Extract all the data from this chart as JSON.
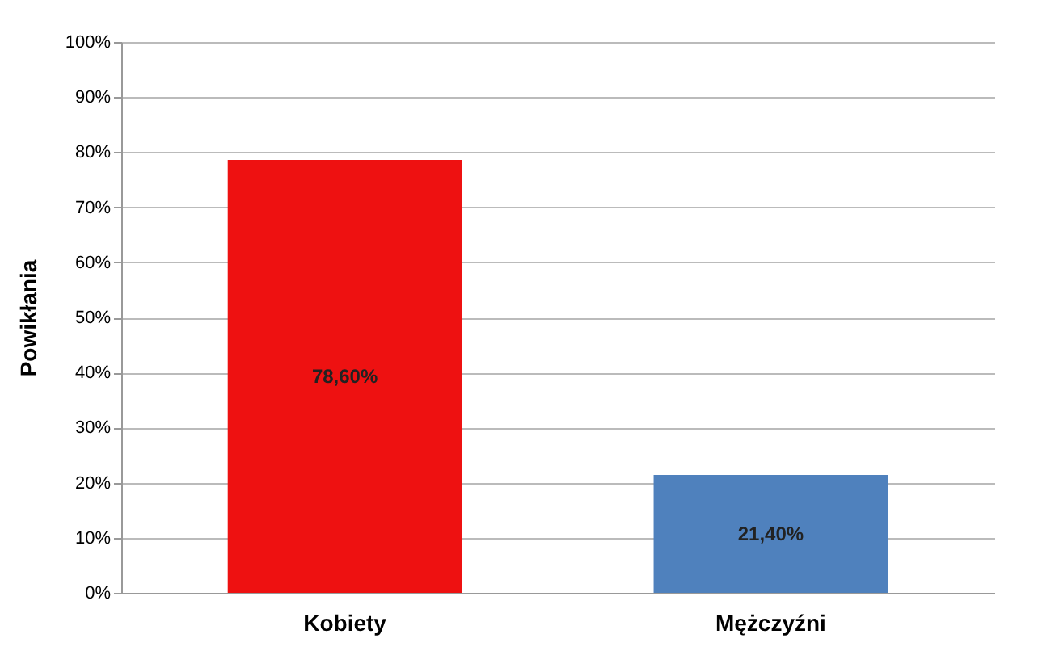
{
  "chart_data": {
    "type": "bar",
    "ylabel": "Powikłania",
    "categories": [
      "Kobiety",
      "Mężczyźni"
    ],
    "values": [
      78.6,
      21.4
    ],
    "colors": [
      "#ee1111",
      "#4f81bd"
    ],
    "value_labels": [
      "78,60%",
      "21,40%"
    ],
    "ylim": [
      0,
      100
    ],
    "yticks": [
      {
        "value": 0,
        "label": "0%"
      },
      {
        "value": 10,
        "label": "10%"
      },
      {
        "value": 20,
        "label": "20%"
      },
      {
        "value": 30,
        "label": "30%"
      },
      {
        "value": 40,
        "label": "40%"
      },
      {
        "value": 50,
        "label": "50%"
      },
      {
        "value": 60,
        "label": "60%"
      },
      {
        "value": 70,
        "label": "70%"
      },
      {
        "value": 80,
        "label": "80%"
      },
      {
        "value": 90,
        "label": "90%"
      },
      {
        "value": 100,
        "label": "100%"
      }
    ],
    "grid": "y",
    "legend": false
  }
}
